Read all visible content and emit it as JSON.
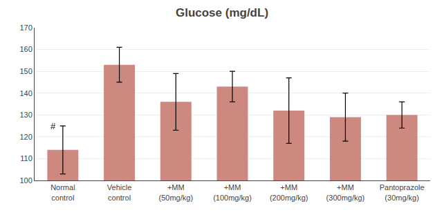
{
  "chart_data": {
    "type": "bar",
    "title": "Glucose (mg/dL)",
    "categories": [
      "Normal\ncontrol",
      "Vehicle\ncontrol",
      "+MM\n(50mg/kg)",
      "+MM\n(100mg/kg)",
      "+MM\n(200mg/kg)",
      "+MM\n(300mg/kg)",
      "Pantoprazole\n(30mg/kg)"
    ],
    "values": [
      114,
      153,
      136,
      143,
      132,
      129,
      130
    ],
    "errors": [
      11,
      8,
      13,
      7,
      15,
      11,
      6
    ],
    "color": "#cd8880",
    "ylim": [
      100,
      170
    ],
    "yticks": [
      100,
      110,
      120,
      130,
      140,
      150,
      160,
      170
    ],
    "grid": true,
    "annotations": [
      {
        "text": "#",
        "category": "Normal\ncontrol"
      }
    ]
  }
}
